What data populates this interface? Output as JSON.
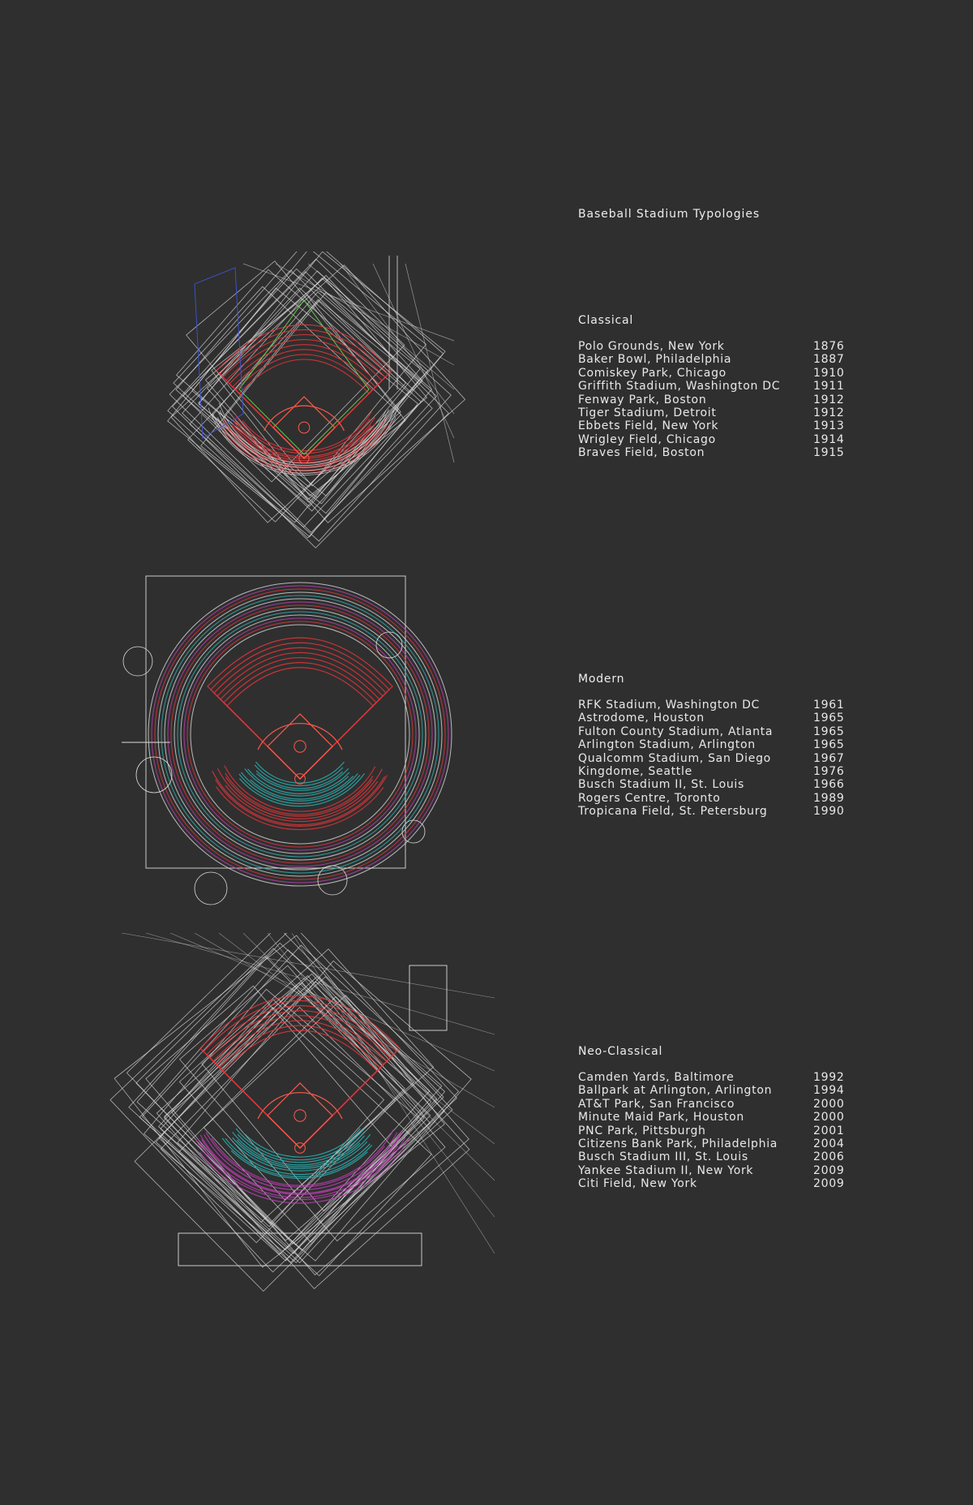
{
  "title": "Baseball Stadium Typologies",
  "colors": {
    "background": "#2f2f2f",
    "text": "#ececec",
    "structure": "#dcdcdc",
    "field_lines": "#ff5a4a",
    "seating_red": "#e8353a",
    "seating_cyan": "#2ab7b7",
    "seating_magenta": "#c23fb6",
    "seating_blue": "#3c55d8",
    "infield_green": "#62c94a"
  },
  "groups": [
    {
      "name": "Classical",
      "stadiums": [
        {
          "name": "Polo Grounds, New York",
          "year": "1876"
        },
        {
          "name": "Baker Bowl, Philadelphia",
          "year": "1887"
        },
        {
          "name": "Comiskey Park, Chicago",
          "year": "1910"
        },
        {
          "name": "Griffith Stadium, Washington DC",
          "year": "1911"
        },
        {
          "name": "Fenway Park, Boston",
          "year": "1912"
        },
        {
          "name": "Tiger Stadium, Detroit",
          "year": "1912"
        },
        {
          "name": "Ebbets Field, New York",
          "year": "1913"
        },
        {
          "name": "Wrigley Field, Chicago",
          "year": "1914"
        },
        {
          "name": "Braves Field, Boston",
          "year": "1915"
        }
      ]
    },
    {
      "name": "Modern",
      "stadiums": [
        {
          "name": "RFK Stadium, Washington DC",
          "year": "1961"
        },
        {
          "name": "Astrodome, Houston",
          "year": "1965"
        },
        {
          "name": "Fulton County Stadium, Atlanta",
          "year": "1965"
        },
        {
          "name": "Arlington Stadium, Arlington",
          "year": "1965"
        },
        {
          "name": "Qualcomm Stadium, San Diego",
          "year": "1967"
        },
        {
          "name": "Kingdome, Seattle",
          "year": "1976"
        },
        {
          "name": "Busch Stadium II, St. Louis",
          "year": "1966"
        },
        {
          "name": "Rogers Centre, Toronto",
          "year": "1989"
        },
        {
          "name": "Tropicana Field, St. Petersburg",
          "year": "1990"
        }
      ]
    },
    {
      "name": "Neo-Classical",
      "stadiums": [
        {
          "name": "Camden Yards, Baltimore",
          "year": "1992"
        },
        {
          "name": "Ballpark at Arlington, Arlington",
          "year": "1994"
        },
        {
          "name": "AT&T Park, San Francisco",
          "year": "2000"
        },
        {
          "name": "Minute Maid Park, Houston",
          "year": "2000"
        },
        {
          "name": "PNC Park, Pittsburgh",
          "year": "2001"
        },
        {
          "name": "Citizens Bank Park, Philadelphia",
          "year": "2004"
        },
        {
          "name": "Busch Stadium III, St. Louis",
          "year": "2006"
        },
        {
          "name": "Yankee Stadium II, New York",
          "year": "2009"
        },
        {
          "name": "Citi Field, New York",
          "year": "2009"
        }
      ]
    }
  ]
}
